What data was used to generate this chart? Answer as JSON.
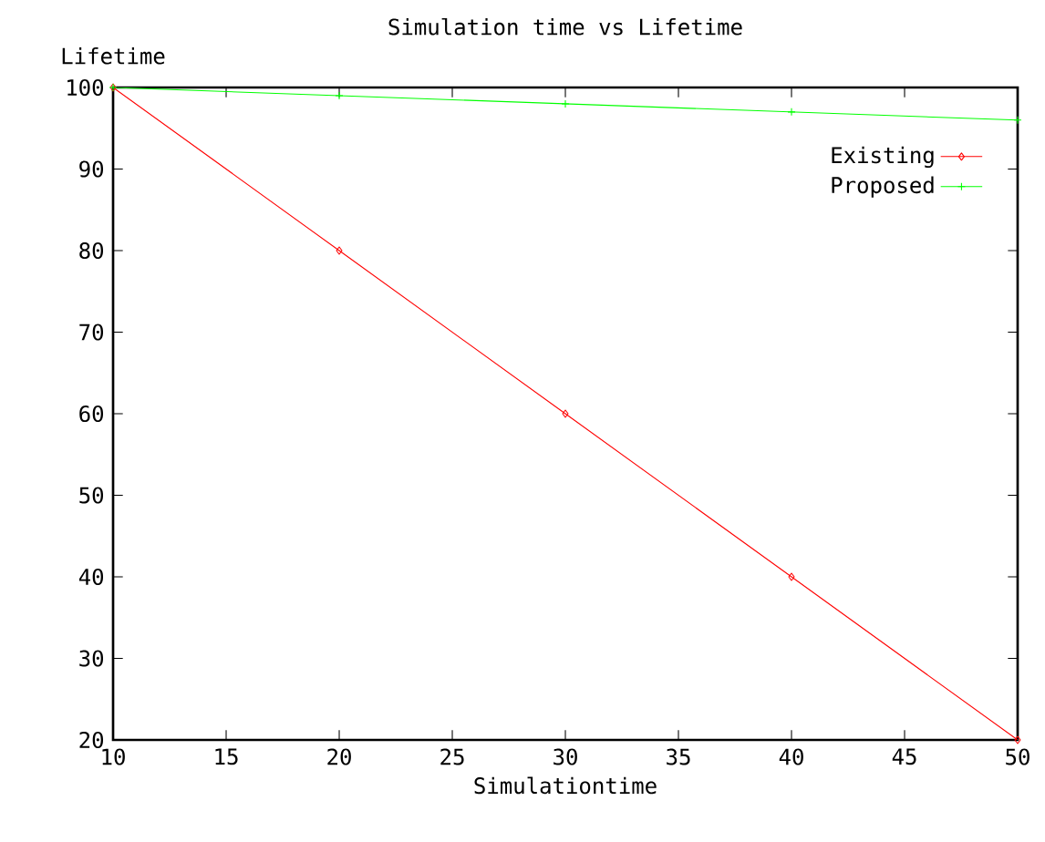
{
  "chart_data": {
    "type": "line",
    "title": "Simulation time vs Lifetime",
    "xlabel": "Simulationtime",
    "ylabel": "Lifetime",
    "x": [
      10,
      20,
      30,
      40,
      50
    ],
    "series": [
      {
        "name": "Existing",
        "color": "#ff0000",
        "marker": "diamond",
        "values": [
          100,
          80,
          60,
          40,
          20
        ]
      },
      {
        "name": "Proposed",
        "color": "#00ff00",
        "marker": "cross",
        "values": [
          100,
          99,
          98,
          97,
          96
        ]
      }
    ],
    "xlim": [
      10,
      50
    ],
    "xticks": [
      10,
      15,
      20,
      25,
      30,
      35,
      40,
      45,
      50
    ],
    "ylim": [
      20,
      100
    ],
    "yticks": [
      20,
      30,
      40,
      50,
      60,
      70,
      80,
      90,
      100
    ],
    "grid": false,
    "legend": "top right"
  }
}
